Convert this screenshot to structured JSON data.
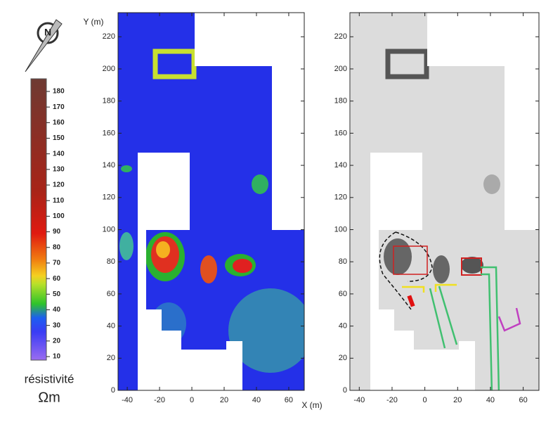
{
  "legend": {
    "label": "résistivité",
    "unit": "Ωm",
    "ticks": [
      10,
      20,
      30,
      40,
      50,
      60,
      70,
      80,
      90,
      100,
      110,
      120,
      130,
      140,
      150,
      160,
      170,
      180
    ]
  },
  "axes": {
    "x_label": "X (m)",
    "y_label": "Y (m)",
    "xlim": [
      -45.7,
      69.6
    ],
    "ylim": [
      0,
      235
    ],
    "xticks": [
      -40,
      -20,
      0,
      20,
      40,
      60
    ],
    "yticks": [
      0,
      20,
      40,
      60,
      80,
      100,
      120,
      140,
      160,
      180,
      200,
      220
    ]
  }
}
